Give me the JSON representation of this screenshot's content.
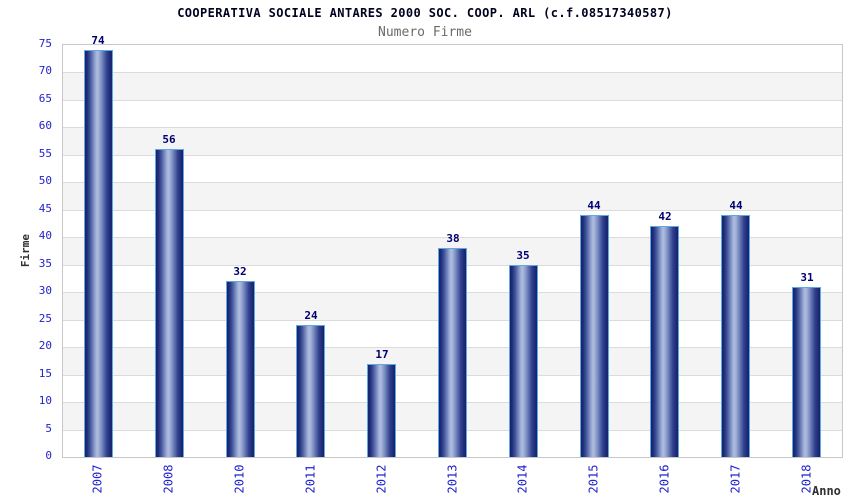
{
  "chart_data": {
    "type": "bar",
    "title": "COOPERATIVA SOCIALE ANTARES 2000 SOC. COOP. ARL (c.f.08517340587)",
    "subtitle": "Numero Firme",
    "xlabel": "Anno",
    "ylabel": "Firme",
    "categories": [
      "2007",
      "2008",
      "2010",
      "2011",
      "2012",
      "2013",
      "2014",
      "2015",
      "2016",
      "2017",
      "2018"
    ],
    "values": [
      74,
      56,
      32,
      24,
      17,
      38,
      35,
      44,
      42,
      44,
      31
    ],
    "ylim": [
      0,
      75
    ],
    "ytick_step": 5,
    "grid": true,
    "grid_stripes": true,
    "legend_position": "none",
    "colors": {
      "tick_label_blue": "#2222cc",
      "value_label_navy": "#000073",
      "bar_edge_dark": "#16246e",
      "bar_highlight": "#aebcdf",
      "bar_cap_blue": "#5ea9e2",
      "stripe_gray": "#f4f4f4",
      "gridline": "#dcdcdc",
      "plot_border": "#c8c8c8",
      "title_color": "#000020",
      "subtitle_color": "#6b6b6b",
      "axis_name_color": "#303030"
    }
  }
}
